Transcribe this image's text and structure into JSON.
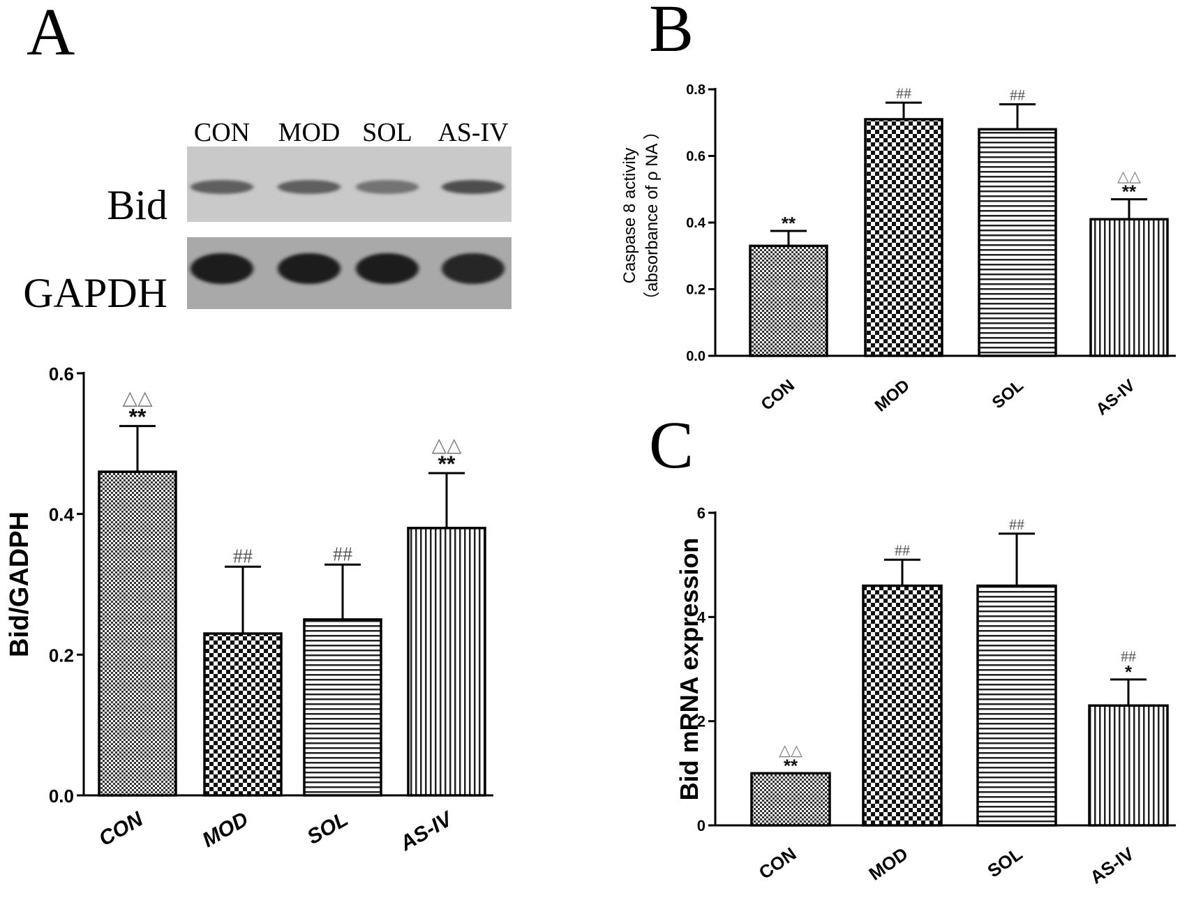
{
  "panel_letters": [
    "A",
    "B",
    "C"
  ],
  "blot": {
    "lanes": [
      "CON",
      "MOD",
      "SOL",
      "AS-IV"
    ],
    "rows": [
      {
        "label": "Bid",
        "band_intensity": [
          0.55,
          0.55,
          0.45,
          0.65
        ]
      },
      {
        "label": "GAPDH",
        "band_intensity": [
          0.9,
          0.9,
          0.9,
          0.85
        ]
      }
    ]
  },
  "colors": {
    "bar_outline": "#000000",
    "pattern": "#222222",
    "sig_gray": "#7a7a7a",
    "sig_dark": "#111111"
  },
  "chart_data": [
    {
      "panel": "A",
      "type": "bar",
      "categories": [
        "CON",
        "MOD",
        "SOL",
        "AS-IV"
      ],
      "values": [
        0.46,
        0.23,
        0.25,
        0.38
      ],
      "errors": [
        0.065,
        0.095,
        0.078,
        0.078
      ],
      "patterns": [
        "fine-check",
        "check",
        "horizontal",
        "vertical"
      ],
      "significance_upper": [
        "△△",
        "##",
        "##",
        "△△"
      ],
      "significance_lower": [
        "**",
        "",
        "",
        "**"
      ],
      "ylabel": "Bid/GADPH",
      "ylabel_lines": [],
      "ylim": [
        0,
        0.6
      ],
      "yticks": [
        "0.0",
        "0.2",
        "0.4",
        "0.6"
      ],
      "tick_style": "italic"
    },
    {
      "panel": "B",
      "type": "bar",
      "categories": [
        "CON",
        "MOD",
        "SOL",
        "AS-IV"
      ],
      "values": [
        0.33,
        0.71,
        0.68,
        0.41
      ],
      "errors": [
        0.045,
        0.05,
        0.075,
        0.06
      ],
      "patterns": [
        "fine-check",
        "check",
        "horizontal",
        "vertical"
      ],
      "significance_upper": [
        "",
        "##",
        "##",
        "△△"
      ],
      "significance_lower": [
        "**",
        "",
        "",
        "**"
      ],
      "ylabel": "",
      "ylabel_lines": [
        "Caspase 8 activity",
        "（absorbance of ρ NA ）"
      ],
      "ylim": [
        0,
        0.8
      ],
      "yticks": [
        "0.0",
        "0.2",
        "0.4",
        "0.6",
        "0.8"
      ],
      "tick_style": "normal"
    },
    {
      "panel": "C",
      "type": "bar",
      "categories": [
        "CON",
        "MOD",
        "SOL",
        "AS-IV"
      ],
      "values": [
        1.0,
        4.6,
        4.6,
        2.3
      ],
      "errors": [
        0.0,
        0.5,
        1.0,
        0.5
      ],
      "patterns": [
        "fine-check",
        "check",
        "horizontal",
        "vertical"
      ],
      "significance_upper": [
        "△△",
        "##",
        "##",
        "##"
      ],
      "significance_lower": [
        "**",
        "",
        "",
        "*"
      ],
      "ylabel": "Bid mRNA expression",
      "ylabel_lines": [],
      "ylim": [
        0,
        6
      ],
      "yticks": [
        "0",
        "2",
        "4",
        "6"
      ],
      "tick_style": "normal"
    }
  ]
}
